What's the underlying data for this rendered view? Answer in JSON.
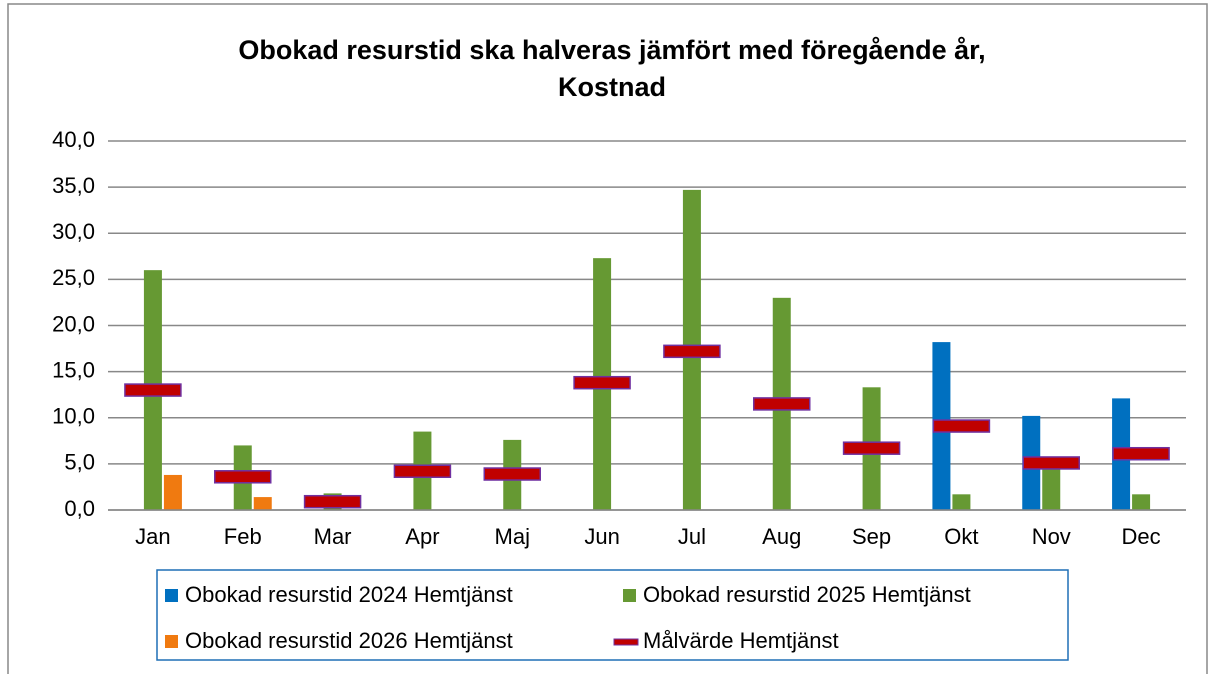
{
  "chart_data": {
    "type": "bar",
    "title": [
      "Obokad resurstid ska halveras jämfört med föregående år,",
      "Kostnad"
    ],
    "categories": [
      "Jan",
      "Feb",
      "Mar",
      "Apr",
      "Maj",
      "Jun",
      "Jul",
      "Aug",
      "Sep",
      "Okt",
      "Nov",
      "Dec"
    ],
    "series": [
      {
        "name": "Obokad resurstid 2024 Hemtjänst",
        "color": "#0070c0",
        "values": [
          null,
          null,
          null,
          null,
          null,
          null,
          null,
          null,
          null,
          18.2,
          10.2,
          12.1
        ]
      },
      {
        "name": "Obokad resurstid 2025 Hemtjänst",
        "color": "#669933",
        "values": [
          26.0,
          7.0,
          1.8,
          8.5,
          7.6,
          27.3,
          34.7,
          23.0,
          13.3,
          1.7,
          4.9,
          1.7
        ]
      },
      {
        "name": "Obokad resurstid 2026 Hemtjänst",
        "color": "#f07a10",
        "values": [
          3.8,
          1.4,
          null,
          null,
          null,
          null,
          null,
          null,
          null,
          null,
          null,
          null
        ]
      },
      {
        "name": "Målvärde Hemtjänst",
        "color": "#c00000",
        "mark": "dash",
        "values": [
          13.0,
          3.6,
          0.9,
          4.2,
          3.9,
          13.8,
          17.2,
          11.5,
          6.7,
          9.1,
          5.1,
          6.1
        ]
      }
    ],
    "ylim": [
      0,
      40
    ],
    "yticks": [
      {
        "value": 0,
        "label": "0,0"
      },
      {
        "value": 5,
        "label": "5,0"
      },
      {
        "value": 10,
        "label": "10,0"
      },
      {
        "value": 15,
        "label": "15,0"
      },
      {
        "value": 20,
        "label": "20,0"
      },
      {
        "value": 25,
        "label": "25,0"
      },
      {
        "value": 30,
        "label": "30,0"
      },
      {
        "value": 35,
        "label": "35,0"
      },
      {
        "value": 40,
        "label": "40,0"
      }
    ],
    "grid": true
  }
}
